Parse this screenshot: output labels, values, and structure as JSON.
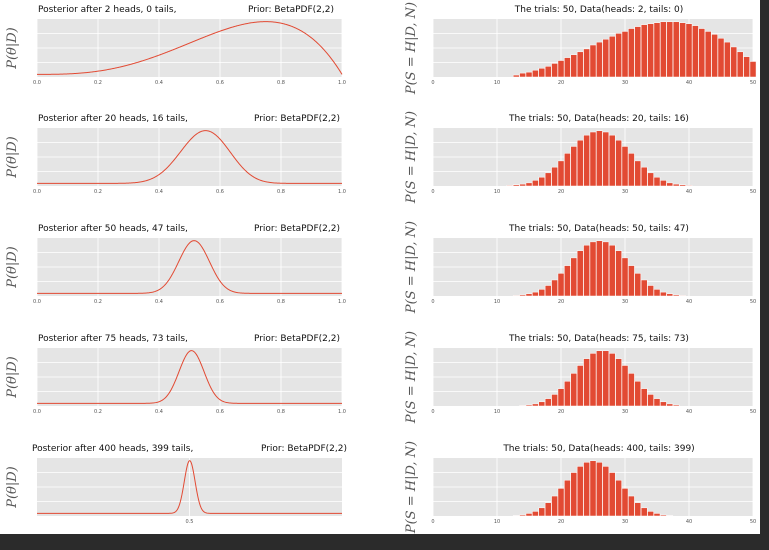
{
  "chart_data": [
    {
      "type": "line",
      "title_left": "Posterior after 2 heads, 0 tails,",
      "title_right": "Prior: BetaPDF(2,2)",
      "ylabel": "P(θ|D)",
      "xlim": [
        0,
        1
      ],
      "xticks": [
        "0.0",
        "0.2",
        "0.4",
        "0.6",
        "0.8",
        "1.0"
      ],
      "xtick_values": [
        0,
        0.2,
        0.4,
        0.6,
        0.8,
        1.0
      ],
      "heads": 2,
      "tails": 0,
      "prior_a": 2,
      "prior_b": 2,
      "grid": true
    },
    {
      "type": "bar",
      "title": "The trials: 50, Data(heads: 2, tails: 0)",
      "ylabel": "P(S = H|D, N)",
      "xlim": [
        0,
        50
      ],
      "xticks": [
        "0",
        "10",
        "20",
        "30",
        "40",
        "50"
      ],
      "xtick_values": [
        0,
        10,
        20,
        30,
        40,
        50
      ],
      "values": [
        0.002,
        0.004,
        0.005,
        0.007,
        0.009,
        0.011,
        0.014,
        0.017,
        0.02,
        0.023,
        0.026,
        0.029,
        0.033,
        0.036,
        0.039,
        0.042,
        0.045,
        0.047,
        0.05,
        0.052,
        0.054,
        0.055,
        0.056,
        0.057,
        0.057,
        0.057,
        0.056,
        0.055,
        0.053,
        0.05,
        0.047,
        0.044,
        0.04,
        0.036,
        0.031,
        0.026,
        0.021,
        0.016
      ],
      "x_start": 13,
      "grid": true
    },
    {
      "type": "line",
      "title_left": "Posterior after 20 heads, 16 tails,",
      "title_right": "Prior: BetaPDF(2,2)",
      "ylabel": "P(θ|D)",
      "xlim": [
        0,
        1
      ],
      "xticks": [
        "0.0",
        "0.2",
        "0.4",
        "0.6",
        "0.8",
        "1.0"
      ],
      "xtick_values": [
        0,
        0.2,
        0.4,
        0.6,
        0.8,
        1.0
      ],
      "heads": 20,
      "tails": 16,
      "prior_a": 2,
      "prior_b": 2,
      "grid": true
    },
    {
      "type": "bar",
      "title": "The trials: 50, Data(heads: 20, tails: 16)",
      "ylabel": "P(S = H|D, N)",
      "xlim": [
        0,
        50
      ],
      "xticks": [
        "0",
        "10",
        "20",
        "30",
        "40",
        "50"
      ],
      "xtick_values": [
        0,
        10,
        20,
        30,
        40,
        50
      ],
      "values": [
        0.001,
        0.002,
        0.003,
        0.005,
        0.009,
        0.014,
        0.021,
        0.03,
        0.04,
        0.052,
        0.063,
        0.073,
        0.081,
        0.086,
        0.088,
        0.086,
        0.081,
        0.073,
        0.063,
        0.052,
        0.04,
        0.03,
        0.021,
        0.014,
        0.009,
        0.005,
        0.003,
        0.002,
        0.001
      ],
      "x_start": 12,
      "grid": true
    },
    {
      "type": "line",
      "title_left": "Posterior after 50 heads, 47 tails,",
      "title_right": "Prior: BetaPDF(2,2)",
      "ylabel": "P(θ|D)",
      "xlim": [
        0,
        1
      ],
      "xticks": [
        "0.0",
        "0.2",
        "0.4",
        "0.6",
        "0.8",
        "1.0"
      ],
      "xtick_values": [
        0,
        0.2,
        0.4,
        0.6,
        0.8,
        1.0
      ],
      "heads": 50,
      "tails": 47,
      "prior_a": 2,
      "prior_b": 2,
      "grid": true
    },
    {
      "type": "bar",
      "title": "The trials: 50, Data(heads: 50, tails: 47)",
      "ylabel": "P(S = H|D, N)",
      "xlim": [
        0,
        50
      ],
      "xticks": [
        "0",
        "10",
        "20",
        "30",
        "40",
        "50"
      ],
      "xtick_values": [
        0,
        10,
        20,
        30,
        40,
        50
      ],
      "values": [
        0.001,
        0.002,
        0.004,
        0.007,
        0.012,
        0.019,
        0.029,
        0.041,
        0.055,
        0.069,
        0.082,
        0.092,
        0.098,
        0.1,
        0.098,
        0.092,
        0.082,
        0.069,
        0.055,
        0.041,
        0.029,
        0.019,
        0.012,
        0.007,
        0.004,
        0.002,
        0.001
      ],
      "x_start": 13,
      "grid": true
    },
    {
      "type": "line",
      "title_left": "Posterior after 75 heads, 73 tails,",
      "title_right": "Prior: BetaPDF(2,2)",
      "ylabel": "P(θ|D)",
      "xlim": [
        0,
        1
      ],
      "xticks": [
        "0.0",
        "0.2",
        "0.4",
        "0.6",
        "0.8",
        "1.0"
      ],
      "xtick_values": [
        0,
        0.2,
        0.4,
        0.6,
        0.8,
        1.0
      ],
      "heads": 75,
      "tails": 73,
      "prior_a": 2,
      "prior_b": 2,
      "grid": true
    },
    {
      "type": "bar",
      "title": "The trials: 50, Data(heads: 75, tails: 73)",
      "ylabel": "P(S = H|D, N)",
      "xlim": [
        0,
        50
      ],
      "xticks": [
        "0",
        "10",
        "20",
        "30",
        "40",
        "50"
      ],
      "xtick_values": [
        0,
        10,
        20,
        30,
        40,
        50
      ],
      "values": [
        0.001,
        0.002,
        0.004,
        0.008,
        0.014,
        0.022,
        0.033,
        0.047,
        0.062,
        0.077,
        0.09,
        0.1,
        0.105,
        0.105,
        0.1,
        0.09,
        0.077,
        0.062,
        0.047,
        0.033,
        0.022,
        0.014,
        0.008,
        0.004,
        0.002
      ],
      "x_start": 14,
      "grid": true
    },
    {
      "type": "line",
      "title_left": "Posterior after 400 heads, 399 tails,",
      "title_right": "Prior: BetaPDF(2,2)",
      "ylabel": "P(θ|D)",
      "xlim": [
        0,
        1
      ],
      "xticks": [
        "0.5"
      ],
      "xtick_values": [
        0.5
      ],
      "heads": 400,
      "tails": 399,
      "prior_a": 2,
      "prior_b": 2,
      "grid": true
    },
    {
      "type": "bar",
      "title": "The trials: 50, Data(heads: 400, tails: 399)",
      "ylabel": "P(S = H|D, N)",
      "xlim": [
        0,
        50
      ],
      "xticks": [
        "0",
        "10",
        "20",
        "30",
        "40",
        "50"
      ],
      "xtick_values": [
        0,
        10,
        20,
        30,
        40,
        50
      ],
      "values": [
        0.001,
        0.002,
        0.005,
        0.009,
        0.016,
        0.026,
        0.039,
        0.054,
        0.07,
        0.085,
        0.097,
        0.105,
        0.108,
        0.105,
        0.097,
        0.085,
        0.07,
        0.054,
        0.039,
        0.026,
        0.016,
        0.009,
        0.005,
        0.002,
        0.001
      ],
      "x_start": 13,
      "grid": true
    }
  ],
  "colors": {
    "line": "#e24a33",
    "bar": "#e24a33",
    "bar_edge": "#ffffff",
    "axes_bg": "#e5e5e5",
    "grid": "#ffffff",
    "window_bg": "#2b2b2b",
    "figure_bg": "#ffffff"
  }
}
